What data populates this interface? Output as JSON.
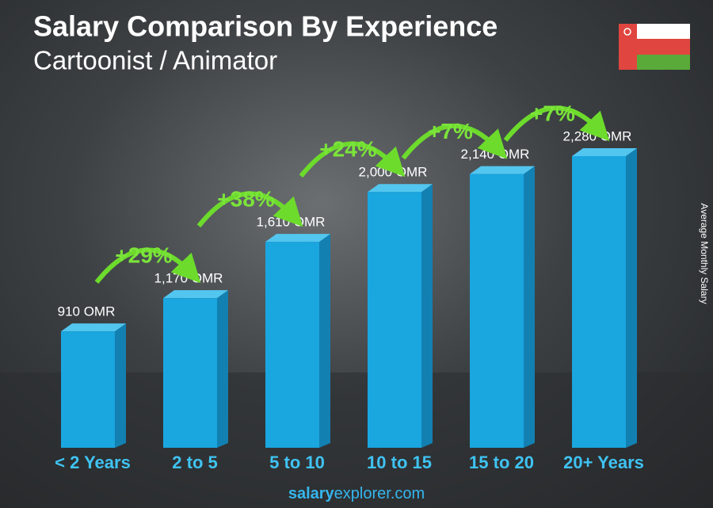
{
  "chart_data": {
    "type": "bar",
    "title": "Salary Comparison By Experience",
    "subtitle": "Cartoonist / Animator",
    "axis_label": "Average Monthly Salary",
    "categories": [
      "< 2 Years",
      "2 to 5",
      "5 to 10",
      "10 to 15",
      "15 to 20",
      "20+ Years"
    ],
    "values": [
      910,
      1170,
      1610,
      2000,
      2140,
      2280
    ],
    "value_labels": [
      "910 OMR",
      "1,170 OMR",
      "1,610 OMR",
      "2,000 OMR",
      "2,140 OMR",
      "2,280 OMR"
    ],
    "increases": [
      "+29%",
      "+38%",
      "+24%",
      "+7%",
      "+7%"
    ],
    "color": "#1aa6df",
    "footer": [
      "salary",
      "explorer.com"
    ]
  }
}
